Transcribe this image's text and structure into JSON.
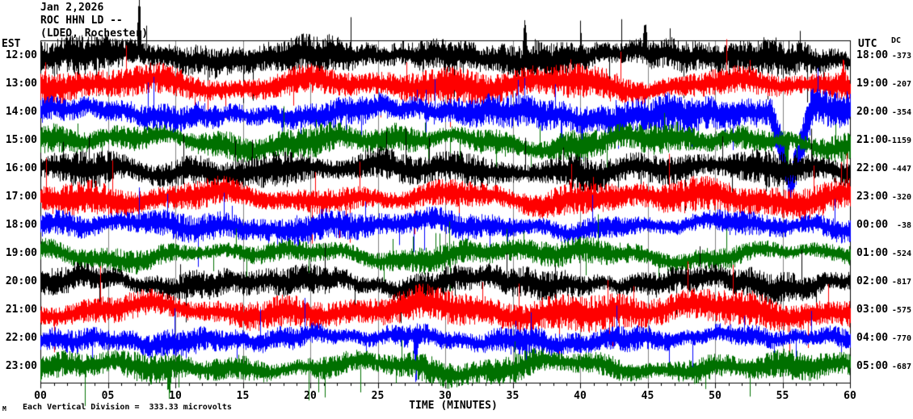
{
  "header": {
    "date": "Jan 2,2026",
    "station": "ROC HHN LD --",
    "location": "(LDEO, Rochester)"
  },
  "axes": {
    "left_title": "EST",
    "right_title": "UTC",
    "dc_title": "DC",
    "xlabel": "TIME (MINUTES)",
    "x_ticks": [
      "00",
      "05",
      "10",
      "15",
      "20",
      "25",
      "30",
      "35",
      "40",
      "45",
      "50",
      "55",
      "60"
    ]
  },
  "footer": {
    "scale_note": "Each Vertical Division =  333.33 microvolts",
    "mark": "M"
  },
  "colors": {
    "background": "#ffffff",
    "frame": "#000000",
    "gridline": "#808080",
    "trace_black": "#000000",
    "trace_red": "#ff0000",
    "trace_blue": "#0000ff",
    "trace_green": "#007000"
  },
  "chart_data": {
    "type": "line",
    "subtype": "helicorder-seismogram",
    "title": "ROC HHN LD -- (LDEO, Rochester) Jan 2,2026",
    "xlabel": "TIME (MINUTES)",
    "x_range_minutes": [
      0,
      60
    ],
    "x_tick_step_minutes": 5,
    "minutes_per_row": 60,
    "vertical_division_microvolts": 333.33,
    "rows": [
      {
        "est": "12:00",
        "utc": "18:00",
        "dc": -373,
        "color": "#000000",
        "amp": 17,
        "wander": 8,
        "seed": 37
      },
      {
        "est": "13:00",
        "utc": "19:00",
        "dc": -207,
        "color": "#ff0000",
        "amp": 16,
        "wander": 9,
        "seed": 74
      },
      {
        "est": "14:00",
        "utc": "20:00",
        "dc": -354,
        "color": "#0000ff",
        "amp": 16,
        "wander": 9,
        "seed": 111
      },
      {
        "est": "15:00",
        "utc": "21:00",
        "dc": -1159,
        "color": "#007000",
        "amp": 14,
        "wander": 11,
        "seed": 148
      },
      {
        "est": "16:00",
        "utc": "22:00",
        "dc": -447,
        "color": "#000000",
        "amp": 16,
        "wander": 8,
        "seed": 185
      },
      {
        "est": "17:00",
        "utc": "23:00",
        "dc": -320,
        "color": "#ff0000",
        "amp": 15,
        "wander": 9,
        "seed": 222
      },
      {
        "est": "18:00",
        "utc": "00:00",
        "dc": -38,
        "color": "#0000ff",
        "amp": 13,
        "wander": 8,
        "seed": 259
      },
      {
        "est": "19:00",
        "utc": "01:00",
        "dc": -524,
        "color": "#007000",
        "amp": 12,
        "wander": 10,
        "seed": 296
      },
      {
        "est": "20:00",
        "utc": "02:00",
        "dc": -817,
        "color": "#000000",
        "amp": 14,
        "wander": 9,
        "seed": 333
      },
      {
        "est": "21:00",
        "utc": "03:00",
        "dc": -575,
        "color": "#ff0000",
        "amp": 16,
        "wander": 10,
        "seed": 370
      },
      {
        "est": "22:00",
        "utc": "04:00",
        "dc": -770,
        "color": "#0000ff",
        "amp": 12,
        "wander": 8,
        "seed": 407
      },
      {
        "est": "23:00",
        "utc": "05:00",
        "dc": -687,
        "color": "#007000",
        "amp": 13,
        "wander": 10,
        "seed": 444
      }
    ],
    "features": [
      {
        "series": 0,
        "minute": 7.3,
        "type": "spike-up",
        "size": 68
      },
      {
        "series": 0,
        "minute": 35.9,
        "type": "spike-up",
        "size": 46
      },
      {
        "series": 0,
        "minute": 44.8,
        "type": "spike-up",
        "size": 30
      },
      {
        "series": 1,
        "minute": 59.5,
        "type": "spike-up",
        "size": 25
      },
      {
        "series": 2,
        "minute": 55.6,
        "type": "dip-down",
        "size": 92,
        "width": 1.6
      },
      {
        "series": 3,
        "minute": 55.3,
        "type": "spike-down",
        "size": 55
      },
      {
        "series": 10,
        "minute": 27.8,
        "type": "spike-down",
        "size": 58
      },
      {
        "series": 11,
        "minute": 9.5,
        "type": "spike-down",
        "size": 30
      }
    ]
  }
}
